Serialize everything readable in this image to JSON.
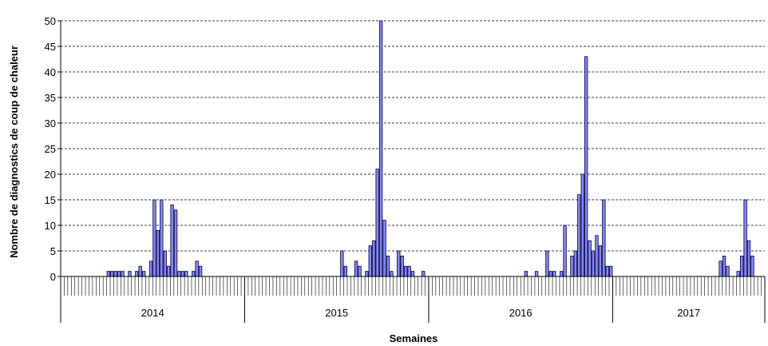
{
  "chart_data": {
    "type": "bar",
    "ylabel": "Nombre de diagnostics de coup de chaleur",
    "xlabel": "Semaines",
    "ylim": [
      0,
      50
    ],
    "yticks": [
      0,
      5,
      10,
      15,
      20,
      25,
      30,
      35,
      40,
      45,
      50
    ],
    "grid": true,
    "x_period_min": 1,
    "x_period_max": 199,
    "years": [
      {
        "label": "2014",
        "start": 1,
        "end": 52
      },
      {
        "label": "2015",
        "start": 53,
        "end": 104
      },
      {
        "label": "2016",
        "start": 105,
        "end": 156
      },
      {
        "label": "2017",
        "start": 157,
        "end": 199
      }
    ],
    "bars": [
      {
        "week": 14,
        "value": 1
      },
      {
        "week": 15,
        "value": 1
      },
      {
        "week": 16,
        "value": 1
      },
      {
        "week": 17,
        "value": 1
      },
      {
        "week": 18,
        "value": 1
      },
      {
        "week": 20,
        "value": 1
      },
      {
        "week": 22,
        "value": 1
      },
      {
        "week": 23,
        "value": 2
      },
      {
        "week": 24,
        "value": 1
      },
      {
        "week": 26,
        "value": 3
      },
      {
        "week": 27,
        "value": 15
      },
      {
        "week": 28,
        "value": 9
      },
      {
        "week": 29,
        "value": 15
      },
      {
        "week": 30,
        "value": 5
      },
      {
        "week": 31,
        "value": 2
      },
      {
        "week": 32,
        "value": 14
      },
      {
        "week": 33,
        "value": 13
      },
      {
        "week": 34,
        "value": 1
      },
      {
        "week": 35,
        "value": 1
      },
      {
        "week": 36,
        "value": 1
      },
      {
        "week": 38,
        "value": 1
      },
      {
        "week": 39,
        "value": 3
      },
      {
        "week": 40,
        "value": 2
      },
      {
        "week": 80,
        "value": 5
      },
      {
        "week": 81,
        "value": 2
      },
      {
        "week": 84,
        "value": 3
      },
      {
        "week": 85,
        "value": 2
      },
      {
        "week": 87,
        "value": 1
      },
      {
        "week": 88,
        "value": 6
      },
      {
        "week": 89,
        "value": 7
      },
      {
        "week": 90,
        "value": 21
      },
      {
        "week": 91,
        "value": 50
      },
      {
        "week": 92,
        "value": 11
      },
      {
        "week": 93,
        "value": 4
      },
      {
        "week": 94,
        "value": 1
      },
      {
        "week": 96,
        "value": 5
      },
      {
        "week": 97,
        "value": 4
      },
      {
        "week": 98,
        "value": 2
      },
      {
        "week": 99,
        "value": 2
      },
      {
        "week": 100,
        "value": 1
      },
      {
        "week": 103,
        "value": 1
      },
      {
        "week": 132,
        "value": 1
      },
      {
        "week": 135,
        "value": 1
      },
      {
        "week": 138,
        "value": 5
      },
      {
        "week": 139,
        "value": 1
      },
      {
        "week": 140,
        "value": 1
      },
      {
        "week": 142,
        "value": 1
      },
      {
        "week": 143,
        "value": 10
      },
      {
        "week": 145,
        "value": 4
      },
      {
        "week": 146,
        "value": 5
      },
      {
        "week": 147,
        "value": 16
      },
      {
        "week": 148,
        "value": 20
      },
      {
        "week": 149,
        "value": 43
      },
      {
        "week": 150,
        "value": 7
      },
      {
        "week": 151,
        "value": 5
      },
      {
        "week": 152,
        "value": 8
      },
      {
        "week": 153,
        "value": 6
      },
      {
        "week": 154,
        "value": 15
      },
      {
        "week": 155,
        "value": 2
      },
      {
        "week": 156,
        "value": 2
      },
      {
        "week": 187,
        "value": 3
      },
      {
        "week": 188,
        "value": 4
      },
      {
        "week": 189,
        "value": 2
      },
      {
        "week": 192,
        "value": 1
      },
      {
        "week": 193,
        "value": 4
      },
      {
        "week": 194,
        "value": 15
      },
      {
        "week": 195,
        "value": 7
      },
      {
        "week": 196,
        "value": 4
      }
    ]
  }
}
